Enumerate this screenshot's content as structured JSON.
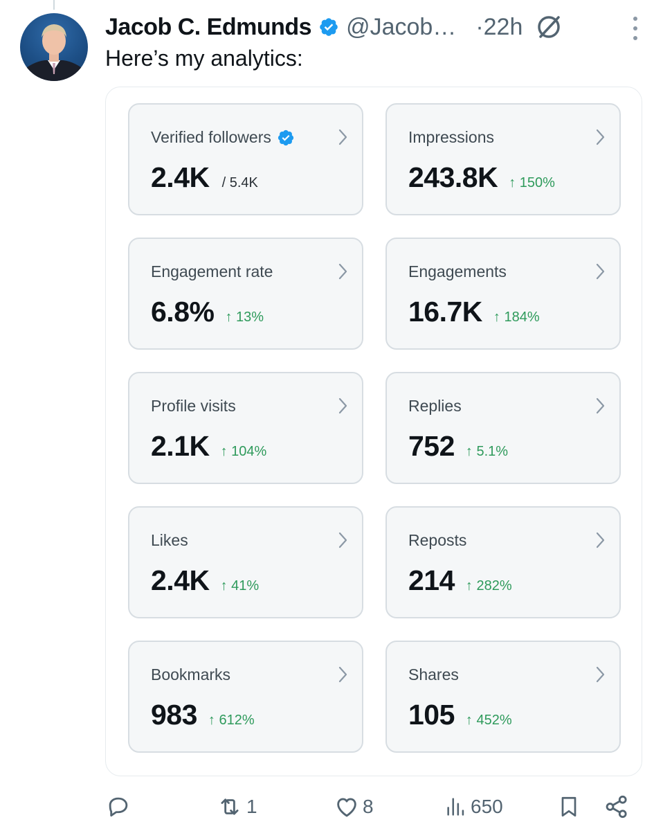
{
  "tweet": {
    "author_name": "Jacob C. Edmunds",
    "handle": "@Jacob…",
    "time": "·22h",
    "text": "Here’s my analytics:"
  },
  "colors": {
    "verified_blue": "#1d9bf0",
    "positive_green": "#2e9a5b",
    "card_bg": "#f5f7f8",
    "card_border": "#d7dde2"
  },
  "metrics": [
    {
      "label": "Verified followers",
      "value": "2.4K",
      "secondary": "/ 5.4K",
      "delta": "",
      "verified_badge": true
    },
    {
      "label": "Impressions",
      "value": "243.8K",
      "secondary": "",
      "delta": "↑ 150%"
    },
    {
      "label": "Engagement rate",
      "value": "6.8%",
      "secondary": "",
      "delta": "↑ 13%"
    },
    {
      "label": "Engagements",
      "value": "16.7K",
      "secondary": "",
      "delta": "↑ 184%"
    },
    {
      "label": "Profile visits",
      "value": "2.1K",
      "secondary": "",
      "delta": "↑ 104%"
    },
    {
      "label": "Replies",
      "value": "752",
      "secondary": "",
      "delta": "↑ 5.1%"
    },
    {
      "label": "Likes",
      "value": "2.4K",
      "secondary": "",
      "delta": "↑ 41%"
    },
    {
      "label": "Reposts",
      "value": "214",
      "secondary": "",
      "delta": "↑ 282%"
    },
    {
      "label": "Bookmarks",
      "value": "983",
      "secondary": "",
      "delta": "↑ 612%"
    },
    {
      "label": "Shares",
      "value": "105",
      "secondary": "",
      "delta": "↑ 452%"
    }
  ],
  "actions": {
    "reply_count": "",
    "repost_count": "1",
    "like_count": "8",
    "views_count": "650"
  },
  "icons": [
    "verified-badge-icon",
    "grok-icon",
    "more-icon",
    "chevron-right-icon",
    "reply-icon",
    "repost-icon",
    "like-icon",
    "views-icon",
    "bookmark-icon",
    "share-icon"
  ]
}
